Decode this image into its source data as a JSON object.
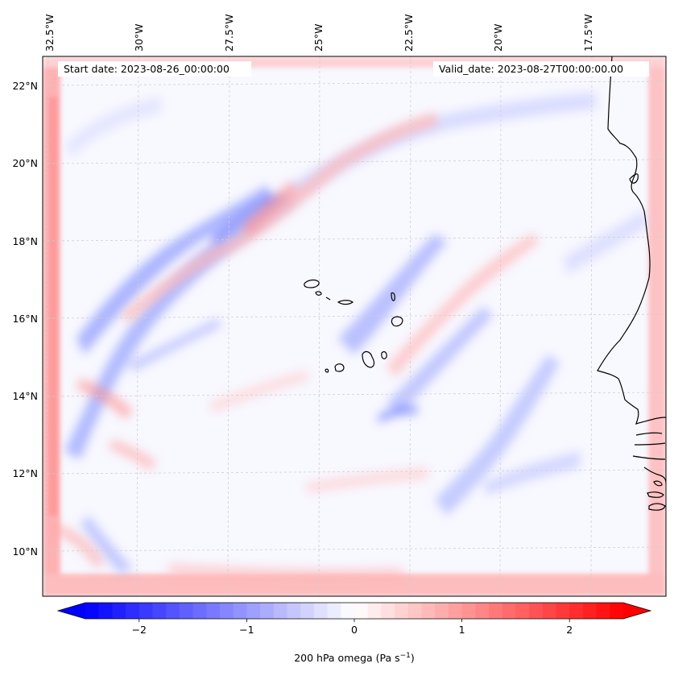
{
  "header": {
    "start_date": "Start date: 2023-08-26_00:00:00",
    "valid_date": "Valid_date: 2023-08-27T00:00:00.00"
  },
  "map": {
    "field": "200 hPa omega",
    "lon_labels": [
      "32.5°W",
      "30°W",
      "27.5°W",
      "25°W",
      "22.5°W",
      "20°W",
      "17.5°W"
    ],
    "lat_labels": [
      "22°N",
      "20°N",
      "18°N",
      "16°N",
      "14°N",
      "12°N",
      "10°N"
    ]
  },
  "colorbar": {
    "label_main": "200 hPa omega (Pa s",
    "label_exp": "−1",
    "label_close": ")",
    "ticks": [
      "−2",
      "−1",
      "0",
      "1",
      "2"
    ],
    "tick_values": [
      -2,
      -1,
      0,
      1,
      2
    ],
    "vmin": -2.5,
    "vmax": 2.5,
    "colors": {
      "negative": "#0000ff",
      "neutral": "#ffffff",
      "positive": "#ff0000"
    }
  }
}
